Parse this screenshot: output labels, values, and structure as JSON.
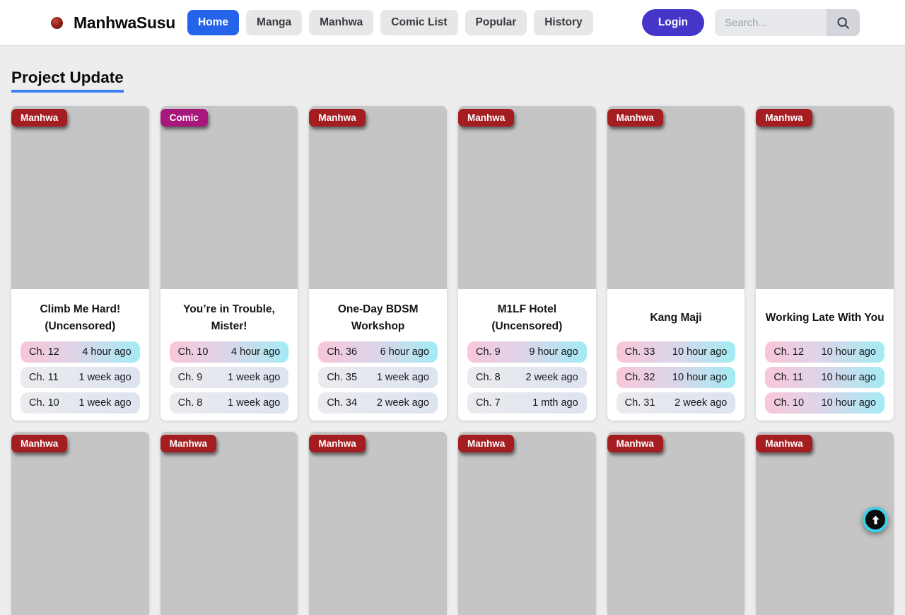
{
  "header": {
    "brand": "ManhwaSusu",
    "nav_items": [
      {
        "label": "Home",
        "active": true
      },
      {
        "label": "Manga",
        "active": false
      },
      {
        "label": "Manhwa",
        "active": false
      },
      {
        "label": "Comic List",
        "active": false
      },
      {
        "label": "Popular",
        "active": false
      },
      {
        "label": "History",
        "active": false
      }
    ],
    "login_label": "Login",
    "search_placeholder": "Search..."
  },
  "main": {
    "heading": "Project Update"
  },
  "colors": {
    "nav_active_blue": "#2563eb",
    "login_purple": "#4536c9",
    "heading_underline_blue": "#3c82f6",
    "badge_manhwa_red": "#a31d21",
    "badge_comic_magenta": "#a8187c",
    "recent_row_gradient": [
      "#f9c6d9",
      "#dcd5e9",
      "#a2ebf4"
    ],
    "old_row_gradient": [
      "#ebebee",
      "#dde3f0"
    ],
    "scroll_top_ring_cyan": "#39d2e8"
  },
  "cards": [
    {
      "badge": "Manhwa",
      "badge_type": "manhwa",
      "title": "Climb Me Hard! (Uncensored)",
      "chapters": [
        {
          "chapter": "Ch. 12",
          "time": "4 hour ago",
          "recent": true
        },
        {
          "chapter": "Ch. 11",
          "time": "1 week ago",
          "recent": false
        },
        {
          "chapter": "Ch. 10",
          "time": "1 week ago",
          "recent": false
        }
      ]
    },
    {
      "badge": "Comic",
      "badge_type": "comic",
      "title": "You’re in Trouble, Mister!",
      "chapters": [
        {
          "chapter": "Ch. 10",
          "time": "4 hour ago",
          "recent": true
        },
        {
          "chapter": "Ch. 9",
          "time": "1 week ago",
          "recent": false
        },
        {
          "chapter": "Ch. 8",
          "time": "1 week ago",
          "recent": false
        }
      ]
    },
    {
      "badge": "Manhwa",
      "badge_type": "manhwa",
      "title": "One-Day BDSM Workshop",
      "chapters": [
        {
          "chapter": "Ch. 36",
          "time": "6 hour ago",
          "recent": true
        },
        {
          "chapter": "Ch. 35",
          "time": "1 week ago",
          "recent": false
        },
        {
          "chapter": "Ch. 34",
          "time": "2 week ago",
          "recent": false
        }
      ]
    },
    {
      "badge": "Manhwa",
      "badge_type": "manhwa",
      "title": "M1LF Hotel (Uncensored)",
      "chapters": [
        {
          "chapter": "Ch. 9",
          "time": "9 hour ago",
          "recent": true
        },
        {
          "chapter": "Ch. 8",
          "time": "2 week ago",
          "recent": false
        },
        {
          "chapter": "Ch. 7",
          "time": "1 mth ago",
          "recent": false
        }
      ]
    },
    {
      "badge": "Manhwa",
      "badge_type": "manhwa",
      "title": "Kang Maji",
      "chapters": [
        {
          "chapter": "Ch. 33",
          "time": "10 hour ago",
          "recent": true
        },
        {
          "chapter": "Ch. 32",
          "time": "10 hour ago",
          "recent": true
        },
        {
          "chapter": "Ch. 31",
          "time": "2 week ago",
          "recent": false
        }
      ]
    },
    {
      "badge": "Manhwa",
      "badge_type": "manhwa",
      "title": "Working Late With You",
      "chapters": [
        {
          "chapter": "Ch. 12",
          "time": "10 hour ago",
          "recent": true
        },
        {
          "chapter": "Ch. 11",
          "time": "10 hour ago",
          "recent": true
        },
        {
          "chapter": "Ch. 10",
          "time": "10 hour ago",
          "recent": true
        }
      ]
    }
  ],
  "partial_cards": [
    {
      "badge": "Manhwa",
      "badge_type": "manhwa"
    },
    {
      "badge": "Manhwa",
      "badge_type": "manhwa"
    },
    {
      "badge": "Manhwa",
      "badge_type": "manhwa"
    },
    {
      "badge": "Manhwa",
      "badge_type": "manhwa"
    },
    {
      "badge": "Manhwa",
      "badge_type": "manhwa"
    },
    {
      "badge": "Manhwa",
      "badge_type": "manhwa"
    }
  ]
}
